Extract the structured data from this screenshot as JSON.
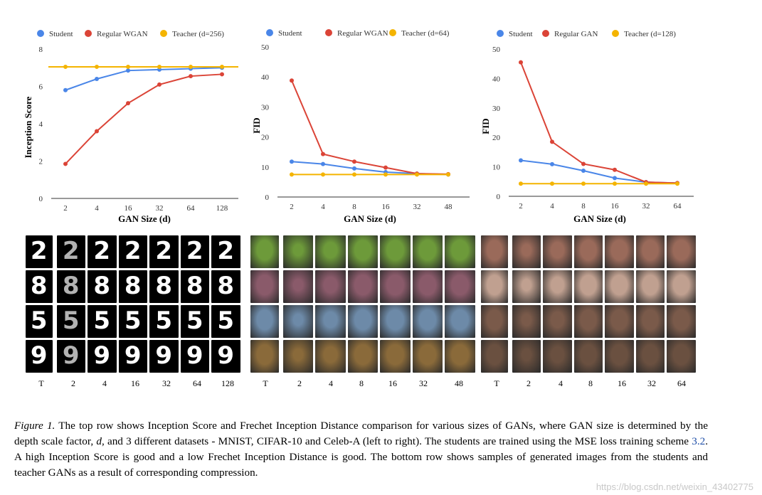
{
  "chart_data": [
    {
      "type": "line",
      "title": "",
      "xlabel": "GAN Size (d)",
      "ylabel": "Inception Score",
      "categories": [
        "2",
        "4",
        "16",
        "32",
        "64",
        "128"
      ],
      "ylim": [
        0,
        8
      ],
      "yticks": [
        "0",
        "2",
        "4",
        "6",
        "8"
      ],
      "series": [
        {
          "name": "Student",
          "color": "#4a86e8",
          "values": [
            5.8,
            6.4,
            6.85,
            6.9,
            6.95,
            7.0
          ]
        },
        {
          "name": "Regular WGAN",
          "color": "#db4437",
          "values": [
            1.85,
            3.6,
            5.1,
            6.1,
            6.55,
            6.65
          ]
        },
        {
          "name": "Teacher (d=256)",
          "color": "#f4b400",
          "values": [
            7.05,
            7.05,
            7.05,
            7.05,
            7.05,
            7.05
          ]
        }
      ],
      "legend": "top"
    },
    {
      "type": "line",
      "title": "",
      "xlabel": "GAN Size (d)",
      "ylabel": "FID",
      "categories": [
        "2",
        "4",
        "8",
        "16",
        "32",
        "48"
      ],
      "ylim": [
        0,
        50
      ],
      "yticks": [
        "0",
        "10",
        "20",
        "30",
        "40",
        "50"
      ],
      "series": [
        {
          "name": "Student",
          "color": "#4a86e8",
          "values": [
            11.8,
            11.0,
            9.5,
            8.3,
            7.8,
            7.5
          ]
        },
        {
          "name": "Regular WGAN",
          "color": "#db4437",
          "values": [
            38.8,
            14.3,
            11.8,
            9.8,
            7.8,
            7.6
          ]
        },
        {
          "name": "Teacher (d=64)",
          "color": "#f4b400",
          "values": [
            7.5,
            7.5,
            7.5,
            7.5,
            7.5,
            7.5
          ]
        }
      ],
      "legend": "top"
    },
    {
      "type": "line",
      "title": "",
      "xlabel": "GAN Size (d)",
      "ylabel": "FID",
      "categories": [
        "2",
        "4",
        "8",
        "16",
        "32",
        "64"
      ],
      "ylim": [
        0,
        50
      ],
      "yticks": [
        "0",
        "10",
        "20",
        "30",
        "40",
        "50"
      ],
      "series": [
        {
          "name": "Student",
          "color": "#4a86e8",
          "values": [
            12.2,
            10.9,
            8.7,
            6.2,
            4.8,
            4.5
          ]
        },
        {
          "name": "Regular GAN",
          "color": "#db4437",
          "values": [
            45.5,
            18.5,
            11.0,
            9.0,
            4.8,
            4.5
          ]
        },
        {
          "name": "Teacher (d=128)",
          "color": "#f4b400",
          "values": [
            4.3,
            4.3,
            4.3,
            4.3,
            4.3,
            4.3
          ]
        }
      ],
      "legend": "top"
    }
  ],
  "samples": {
    "mnist": {
      "labels": [
        "T",
        "2",
        "4",
        "16",
        "32",
        "64",
        "128"
      ],
      "digits": [
        "2",
        "8",
        "5",
        "9"
      ]
    },
    "cifar": {
      "labels": [
        "T",
        "2",
        "4",
        "8",
        "16",
        "32",
        "48"
      ],
      "row_colors": [
        "#6d9a3a",
        "#8a5a6a",
        "#6d8aa8",
        "#8a6a3a"
      ]
    },
    "celeba": {
      "labels": [
        "T",
        "2",
        "4",
        "8",
        "16",
        "32",
        "64"
      ],
      "row_colors": [
        "#9a6a5a",
        "#c0a090",
        "#7a5a4a",
        "#6a5040"
      ]
    }
  },
  "caption": {
    "label": "Figure 1.",
    "text_before_ref": " The top row shows Inception Score and Frechet Inception Distance comparison for various sizes of GANs, where GAN size is determined by the depth scale factor, ",
    "d_symbol": "d",
    "text_mid": ", and 3 different datasets - MNIST, CIFAR-10 and Celeb-A (left to right). The students are trained using the MSE loss training scheme ",
    "ref": "3.2",
    "text_after_ref": ". A high Inception Score is good and a low Frechet Inception Distance is good. The bottom row shows samples of generated images from the students and teacher GANs as a result of corresponding compression."
  },
  "watermark": "https://blog.csdn.net/weixin_43402775"
}
